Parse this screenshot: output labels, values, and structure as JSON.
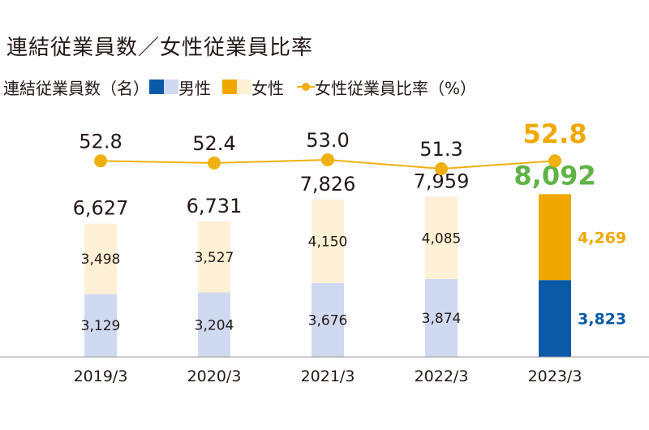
{
  "chart_data": {
    "type": "bar",
    "title": "連結従業員数／女性従業員比率",
    "legend": {
      "unit_label": "連結従業員数（名）",
      "male_label": "男性",
      "female_label": "女性",
      "ratio_label": "女性従業員比率（%）"
    },
    "categories": [
      "2019/3",
      "2020/3",
      "2021/3",
      "2022/3",
      "2023/3"
    ],
    "totals": [
      "6,627",
      "6,731",
      "7,826",
      "7,959",
      "8,092"
    ],
    "series": [
      {
        "name": "男性",
        "values": [
          3129,
          3204,
          3676,
          3874,
          3823
        ],
        "labels": [
          "3,129",
          "3,204",
          "3,676",
          "3,874",
          "3,823"
        ]
      },
      {
        "name": "女性",
        "values": [
          3498,
          3527,
          4150,
          4085,
          4269
        ],
        "labels": [
          "3,498",
          "3,527",
          "4,150",
          "4,085",
          "4,269"
        ]
      }
    ],
    "ratio": {
      "name": "女性従業員比率（%）",
      "values": [
        52.8,
        52.4,
        53.0,
        51.3,
        52.8
      ],
      "labels": [
        "52.8",
        "52.4",
        "53.0",
        "51.3",
        "52.8"
      ]
    },
    "ylim": [
      0,
      8500
    ],
    "highlight_index": 4,
    "colors": {
      "male_light": "#cfd9ef",
      "female_light": "#fdf0d5",
      "male_highlight": "#0a5aa8",
      "female_highlight": "#f0a800",
      "total_highlight": "#5fb346",
      "ratio_line": "#f0b010",
      "ratio_highlight": "#f0a800",
      "text": "#231815"
    }
  }
}
